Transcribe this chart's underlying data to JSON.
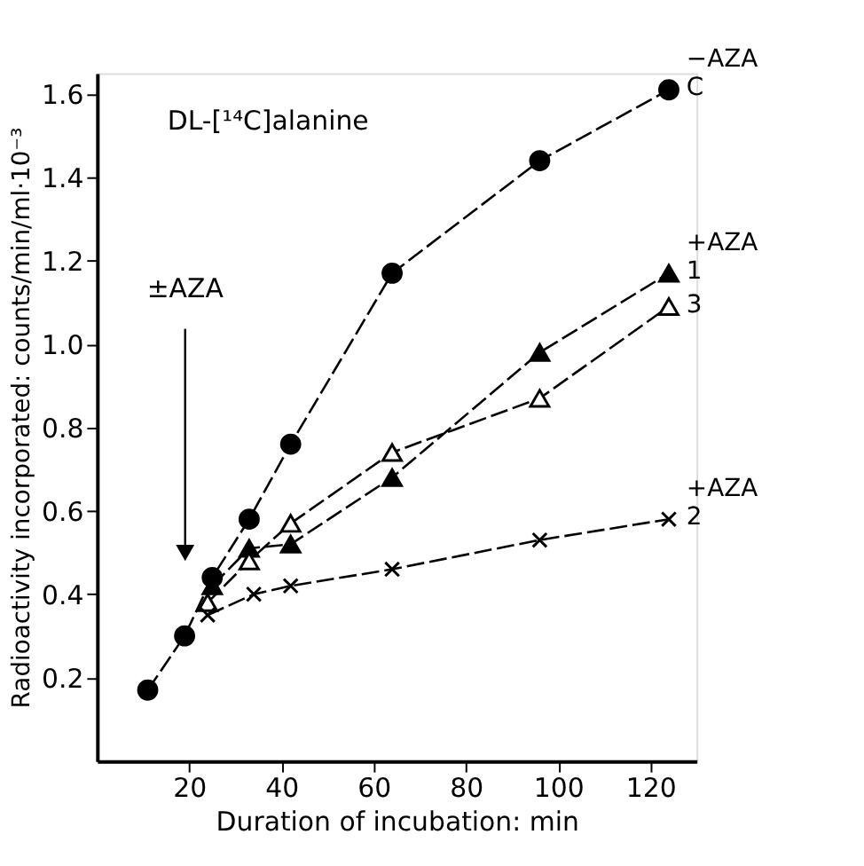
{
  "chart_data": {
    "type": "line",
    "xlabel": "Duration of incubation: min",
    "ylabel": "Radioactivity  incorporated: counts/min/ml·10⁻³",
    "xlim": [
      0,
      130
    ],
    "xticks": [
      20,
      40,
      60,
      80,
      100,
      120
    ],
    "ylim": [
      0,
      1.65
    ],
    "yticks": [
      0.2,
      0.4,
      0.6,
      0.8,
      {
        "value": 1.0,
        "label": "1.0"
      },
      1.2,
      1.4,
      1.6
    ],
    "line_style": "dashed",
    "annotations": [
      "DL-[¹⁴C]alanine",
      "±AZA"
    ],
    "series": [
      {
        "name": "−AZA C",
        "color": "#000000",
        "marker": "circle",
        "x": [
          11,
          19,
          25,
          33,
          42,
          64,
          96,
          124
        ],
        "values": [
          0.17,
          0.3,
          0.44,
          0.58,
          0.76,
          1.17,
          1.44,
          1.61
        ]
      },
      {
        "name": "+AZA 1",
        "color": "#000000",
        "marker": "triangle",
        "x": [
          25,
          33,
          42,
          64,
          96,
          124
        ],
        "values": [
          0.42,
          0.51,
          0.52,
          0.68,
          0.98,
          1.17
        ]
      },
      {
        "name": "3",
        "color": "#000000",
        "colors": [
          "#ffffff",
          "#ffffff",
          "#ffffff",
          "#ffffff",
          "#ffffff",
          "#ffffff"
        ],
        "marker": "triangle",
        "x": [
          24,
          33,
          42,
          64,
          96,
          124
        ],
        "values": [
          0.38,
          0.48,
          0.57,
          0.74,
          0.87,
          1.09
        ]
      },
      {
        "name": "+AZA 2",
        "color": "#000000",
        "marker": "cross",
        "x": [
          24,
          34,
          42,
          64,
          96,
          124
        ],
        "values": [
          0.35,
          0.4,
          0.42,
          0.46,
          0.53,
          0.58
        ]
      }
    ]
  }
}
